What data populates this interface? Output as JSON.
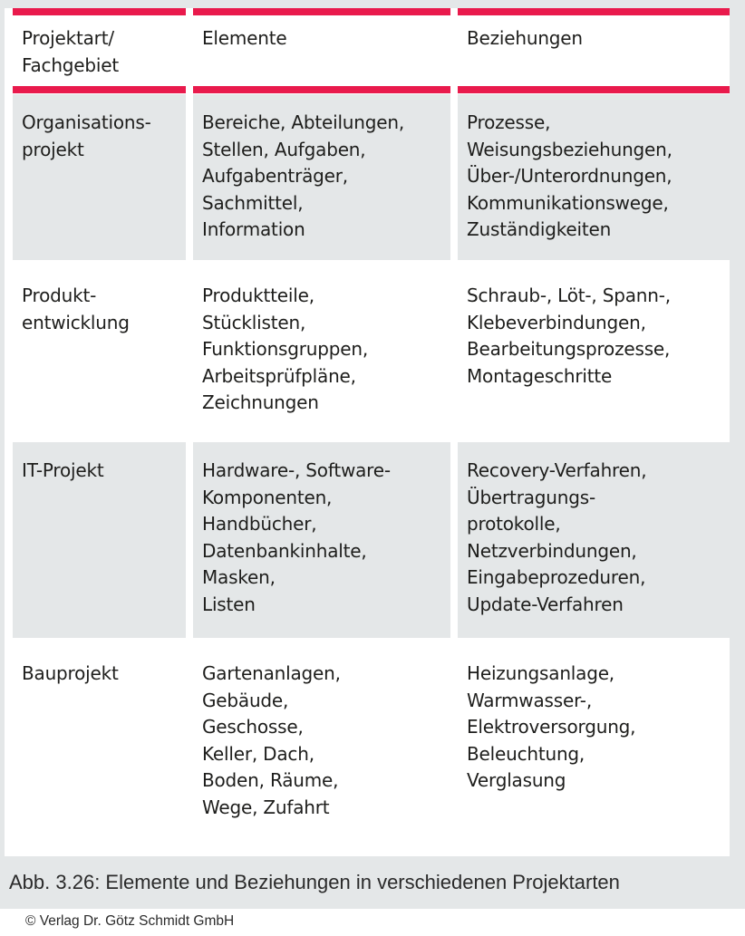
{
  "colors": {
    "accent_crimson": "#e91a4c",
    "cell_gray": "#e4e7e8",
    "text_dark": "#1e1e1c"
  },
  "table": {
    "header": {
      "col1": "Projektart/\nFachgebiet",
      "col2": "Elemente",
      "col3": "Beziehungen"
    },
    "rows": [
      {
        "projektart": "Organisations-\nprojekt",
        "elemente": "Bereiche, Abteilungen,\nStellen, Aufgaben,\nAufgabenträger,\nSachmittel,\nInformation",
        "beziehungen": "Prozesse,\nWeisungsbeziehungen,\nÜber-/Unterordnungen,\nKommunikationswege,\nZuständigkeiten"
      },
      {
        "projektart": "Produkt-\nentwicklung",
        "elemente": "Produktteile,\nStücklisten,\nFunktionsgruppen,\nArbeitsprüfpläne,\nZeichnungen",
        "beziehungen": "Schraub-, Löt-, Spann-,\nKlebeverbindungen,\nBearbeitungsprozesse,\nMontageschritte"
      },
      {
        "projektart": "IT-Projekt",
        "elemente": "Hardware-, Software-\nKomponenten,\nHandbücher,\nDatenbankinhalte,\nMasken,\nListen",
        "beziehungen": "Recovery-Verfahren,\nÜbertragungs-\nprotokolle,\nNetzverbindungen,\nEingabeprozeduren,\nUpdate-Verfahren"
      },
      {
        "projektart": "Bauprojekt",
        "elemente": "Gartenanlagen,\nGebäude,\nGeschosse,\nKeller, Dach,\nBoden, Räume,\nWege, Zufahrt",
        "beziehungen": "Heizungsanlage,\nWarmwasser-,\nElektroversorgung,\nBeleuchtung,\nVerglasung"
      }
    ]
  },
  "caption": "Abb. 3.26: Elemente und Beziehungen in verschiedenen Projektarten",
  "copyright": "© Verlag Dr. Götz Schmidt GmbH"
}
